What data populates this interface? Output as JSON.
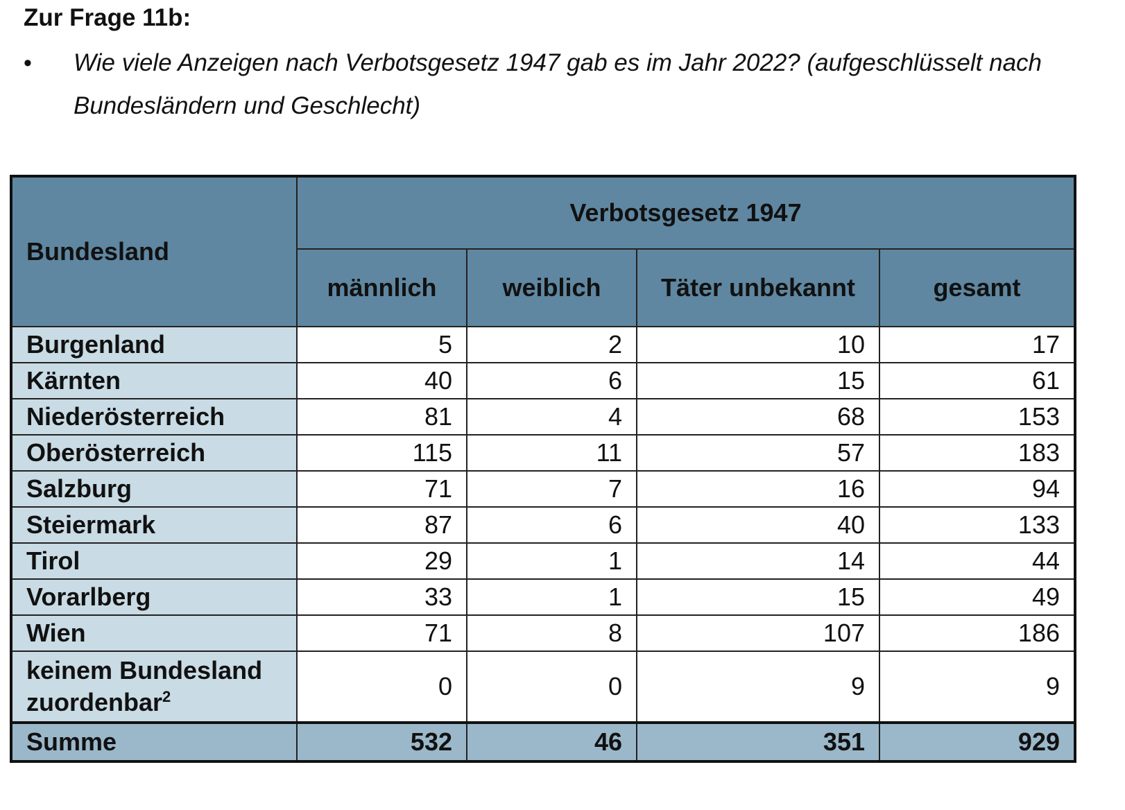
{
  "heading": "Zur Frage 11b:",
  "bullet": "•",
  "question": "Wie viele Anzeigen nach Verbotsgesetz 1947 gab es im Jahr 2022? (aufgeschlüsselt nach Bundesländern und Geschlecht)",
  "table": {
    "state_header": "Bundesland",
    "group_header": "Verbotsgesetz 1947",
    "columns": [
      "männlich",
      "weiblich",
      "Täter unbekannt",
      "gesamt"
    ],
    "rows": [
      {
        "state": "Burgenland",
        "values": [
          "5",
          "2",
          "10",
          "17"
        ]
      },
      {
        "state": "Kärnten",
        "values": [
          "40",
          "6",
          "15",
          "61"
        ]
      },
      {
        "state": "Niederösterreich",
        "values": [
          "81",
          "4",
          "68",
          "153"
        ]
      },
      {
        "state": "Oberösterreich",
        "values": [
          "115",
          "11",
          "57",
          "183"
        ]
      },
      {
        "state": "Salzburg",
        "values": [
          "71",
          "7",
          "16",
          "94"
        ]
      },
      {
        "state": "Steiermark",
        "values": [
          "87",
          "6",
          "40",
          "133"
        ]
      },
      {
        "state": "Tirol",
        "values": [
          "29",
          "1",
          "14",
          "44"
        ]
      },
      {
        "state": "Vorarlberg",
        "values": [
          "33",
          "1",
          "15",
          "49"
        ]
      },
      {
        "state": "Wien",
        "values": [
          "71",
          "8",
          "107",
          "186"
        ]
      }
    ],
    "unassigned": {
      "state": "keinem Bundesland zuordenbar",
      "footnote": "2",
      "values": [
        "0",
        "0",
        "9",
        "9"
      ]
    },
    "sum": {
      "label": "Summe",
      "values": [
        "532",
        "46",
        "351",
        "929"
      ]
    }
  }
}
